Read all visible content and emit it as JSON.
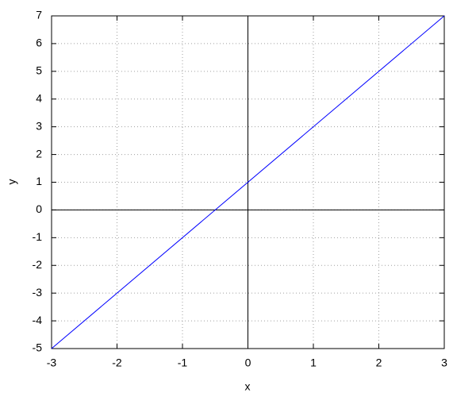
{
  "chart_data": {
    "type": "line",
    "x": [
      -3,
      3
    ],
    "values": [
      -5,
      7
    ],
    "color": "#0000ff",
    "xlabel": "x",
    "ylabel": "y",
    "xlim": [
      -3,
      3
    ],
    "ylim": [
      -5,
      7
    ],
    "xticks": [
      -3,
      -2,
      -1,
      0,
      1,
      2,
      3
    ],
    "yticks": [
      -5,
      -4,
      -3,
      -2,
      -1,
      0,
      1,
      2,
      3,
      4,
      5,
      6,
      7
    ],
    "grid": true,
    "zero_axes": true
  }
}
